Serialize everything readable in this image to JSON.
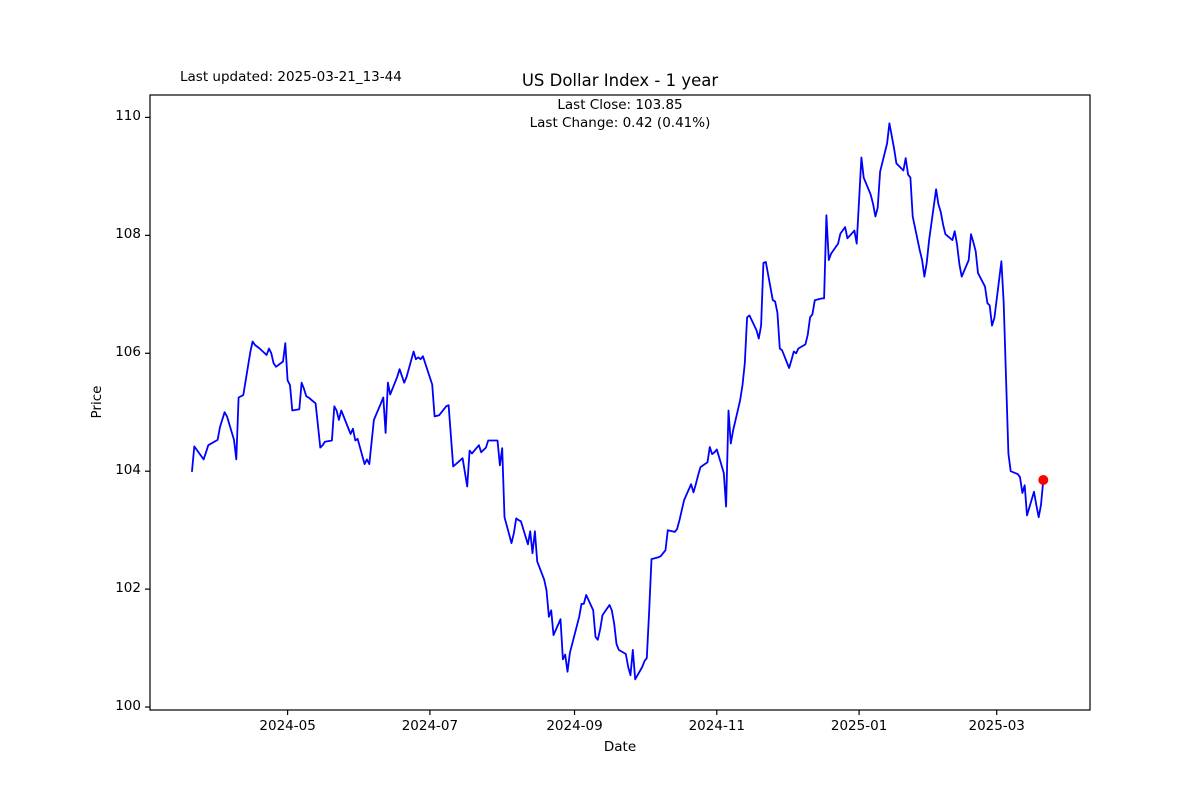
{
  "figure": {
    "last_updated": "Last updated: 2025-03-21_13-44"
  },
  "chart_data": {
    "type": "line",
    "title": "US Dollar Index - 1 year",
    "subtitle_lines": [
      "Last Close: 103.85",
      "Last Change: 0.42 (0.41%)"
    ],
    "xlabel": "Date",
    "ylabel": "Price",
    "grid": false,
    "legend_position": "none",
    "line_color": "#0000ff",
    "marker_color": "#ff0000",
    "axes_color": "#000000",
    "background_color": "#ffffff",
    "last_close": 103.85,
    "last_change": "0.42 (0.41%)",
    "ylim": [
      99.95,
      110.38
    ],
    "xlim_dates": [
      "2024-03-03",
      "2025-04-10"
    ],
    "y_ticks": [
      100,
      102,
      104,
      106,
      108,
      110
    ],
    "x_ticks": [
      {
        "label": "2024-05",
        "date": "2024-05-01"
      },
      {
        "label": "2024-07",
        "date": "2024-07-01"
      },
      {
        "label": "2024-09",
        "date": "2024-09-01"
      },
      {
        "label": "2024-11",
        "date": "2024-11-01"
      },
      {
        "label": "2025-01",
        "date": "2025-01-01"
      },
      {
        "label": "2025-03",
        "date": "2025-03-01"
      }
    ],
    "series": [
      {
        "name": "US Dollar Index",
        "points": [
          [
            "2024-03-21",
            104.0
          ],
          [
            "2024-03-22",
            104.42
          ],
          [
            "2024-03-26",
            104.2
          ],
          [
            "2024-03-27",
            104.32
          ],
          [
            "2024-03-28",
            104.44
          ],
          [
            "2024-04-01",
            104.53
          ],
          [
            "2024-04-02",
            104.75
          ],
          [
            "2024-04-04",
            105.0
          ],
          [
            "2024-04-05",
            104.93
          ],
          [
            "2024-04-08",
            104.53
          ],
          [
            "2024-04-09",
            104.2
          ],
          [
            "2024-04-10",
            105.25
          ],
          [
            "2024-04-12",
            105.29
          ],
          [
            "2024-04-15",
            106.02
          ],
          [
            "2024-04-16",
            106.2
          ],
          [
            "2024-04-17",
            106.14
          ],
          [
            "2024-04-19",
            106.08
          ],
          [
            "2024-04-22",
            105.97
          ],
          [
            "2024-04-23",
            106.08
          ],
          [
            "2024-04-24",
            106.0
          ],
          [
            "2024-04-25",
            105.83
          ],
          [
            "2024-04-26",
            105.77
          ],
          [
            "2024-04-29",
            105.86
          ],
          [
            "2024-04-30",
            106.17
          ],
          [
            "2024-05-01",
            105.54
          ],
          [
            "2024-05-02",
            105.46
          ],
          [
            "2024-05-03",
            105.03
          ],
          [
            "2024-05-06",
            105.05
          ],
          [
            "2024-05-07",
            105.5
          ],
          [
            "2024-05-08",
            105.4
          ],
          [
            "2024-05-09",
            105.27
          ],
          [
            "2024-05-10",
            105.25
          ],
          [
            "2024-05-13",
            105.15
          ],
          [
            "2024-05-15",
            104.4
          ],
          [
            "2024-05-16",
            104.44
          ],
          [
            "2024-05-17",
            104.5
          ],
          [
            "2024-05-20",
            104.52
          ],
          [
            "2024-05-21",
            105.1
          ],
          [
            "2024-05-22",
            105.03
          ],
          [
            "2024-05-23",
            104.87
          ],
          [
            "2024-05-24",
            105.03
          ],
          [
            "2024-05-28",
            104.63
          ],
          [
            "2024-05-29",
            104.72
          ],
          [
            "2024-05-30",
            104.52
          ],
          [
            "2024-05-31",
            104.55
          ],
          [
            "2024-06-03",
            104.12
          ],
          [
            "2024-06-04",
            104.2
          ],
          [
            "2024-06-05",
            104.12
          ],
          [
            "2024-06-07",
            104.87
          ],
          [
            "2024-06-10",
            105.15
          ],
          [
            "2024-06-11",
            105.25
          ],
          [
            "2024-06-12",
            104.65
          ],
          [
            "2024-06-13",
            105.5
          ],
          [
            "2024-06-14",
            105.3
          ],
          [
            "2024-06-17",
            105.6
          ],
          [
            "2024-06-18",
            105.73
          ],
          [
            "2024-06-20",
            105.5
          ],
          [
            "2024-06-21",
            105.6
          ],
          [
            "2024-06-24",
            106.03
          ],
          [
            "2024-06-25",
            105.9
          ],
          [
            "2024-06-26",
            105.93
          ],
          [
            "2024-06-27",
            105.9
          ],
          [
            "2024-06-28",
            105.95
          ],
          [
            "2024-07-02",
            105.47
          ],
          [
            "2024-07-03",
            104.93
          ],
          [
            "2024-07-05",
            104.95
          ],
          [
            "2024-07-08",
            105.1
          ],
          [
            "2024-07-09",
            105.12
          ],
          [
            "2024-07-11",
            104.08
          ],
          [
            "2024-07-15",
            104.22
          ],
          [
            "2024-07-17",
            103.74
          ],
          [
            "2024-07-18",
            104.35
          ],
          [
            "2024-07-19",
            104.3
          ],
          [
            "2024-07-22",
            104.44
          ],
          [
            "2024-07-23",
            104.32
          ],
          [
            "2024-07-25",
            104.4
          ],
          [
            "2024-07-26",
            104.52
          ],
          [
            "2024-07-30",
            104.52
          ],
          [
            "2024-07-31",
            104.1
          ],
          [
            "2024-08-01",
            104.39
          ],
          [
            "2024-08-02",
            103.22
          ],
          [
            "2024-08-05",
            102.78
          ],
          [
            "2024-08-06",
            102.95
          ],
          [
            "2024-08-07",
            103.2
          ],
          [
            "2024-08-08",
            103.17
          ],
          [
            "2024-08-09",
            103.15
          ],
          [
            "2024-08-12",
            102.76
          ],
          [
            "2024-08-13",
            102.98
          ],
          [
            "2024-08-14",
            102.61
          ],
          [
            "2024-08-15",
            102.98
          ],
          [
            "2024-08-16",
            102.47
          ],
          [
            "2024-08-19",
            102.16
          ],
          [
            "2024-08-20",
            101.98
          ],
          [
            "2024-08-21",
            101.53
          ],
          [
            "2024-08-22",
            101.64
          ],
          [
            "2024-08-23",
            101.22
          ],
          [
            "2024-08-26",
            101.49
          ],
          [
            "2024-08-27",
            100.81
          ],
          [
            "2024-08-28",
            100.89
          ],
          [
            "2024-08-29",
            100.6
          ],
          [
            "2024-08-30",
            100.92
          ],
          [
            "2024-09-03",
            101.53
          ],
          [
            "2024-09-04",
            101.75
          ],
          [
            "2024-09-05",
            101.75
          ],
          [
            "2024-09-06",
            101.9
          ],
          [
            "2024-09-09",
            101.64
          ],
          [
            "2024-09-10",
            101.19
          ],
          [
            "2024-09-11",
            101.14
          ],
          [
            "2024-09-12",
            101.32
          ],
          [
            "2024-09-13",
            101.56
          ],
          [
            "2024-09-16",
            101.73
          ],
          [
            "2024-09-17",
            101.64
          ],
          [
            "2024-09-18",
            101.41
          ],
          [
            "2024-09-19",
            101.07
          ],
          [
            "2024-09-20",
            100.97
          ],
          [
            "2024-09-23",
            100.9
          ],
          [
            "2024-09-24",
            100.68
          ],
          [
            "2024-09-25",
            100.54
          ],
          [
            "2024-09-26",
            100.97
          ],
          [
            "2024-09-27",
            100.47
          ],
          [
            "2024-09-30",
            100.68
          ],
          [
            "2024-10-01",
            100.78
          ],
          [
            "2024-10-02",
            100.83
          ],
          [
            "2024-10-03",
            101.64
          ],
          [
            "2024-10-04",
            102.51
          ],
          [
            "2024-10-07",
            102.54
          ],
          [
            "2024-10-08",
            102.56
          ],
          [
            "2024-10-10",
            102.66
          ],
          [
            "2024-10-11",
            103.0
          ],
          [
            "2024-10-14",
            102.97
          ],
          [
            "2024-10-15",
            103.02
          ],
          [
            "2024-10-16",
            103.17
          ],
          [
            "2024-10-17",
            103.34
          ],
          [
            "2024-10-18",
            103.51
          ],
          [
            "2024-10-21",
            103.78
          ],
          [
            "2024-10-22",
            103.64
          ],
          [
            "2024-10-23",
            103.78
          ],
          [
            "2024-10-24",
            103.93
          ],
          [
            "2024-10-25",
            104.07
          ],
          [
            "2024-10-28",
            104.15
          ],
          [
            "2024-10-29",
            104.41
          ],
          [
            "2024-10-30",
            104.29
          ],
          [
            "2024-10-31",
            104.32
          ],
          [
            "2024-11-01",
            104.37
          ],
          [
            "2024-11-04",
            103.97
          ],
          [
            "2024-11-05",
            103.4
          ],
          [
            "2024-11-06",
            105.03
          ],
          [
            "2024-11-07",
            104.47
          ],
          [
            "2024-11-08",
            104.69
          ],
          [
            "2024-11-11",
            105.2
          ],
          [
            "2024-11-12",
            105.46
          ],
          [
            "2024-11-13",
            105.83
          ],
          [
            "2024-11-14",
            106.61
          ],
          [
            "2024-11-15",
            106.64
          ],
          [
            "2024-11-18",
            106.39
          ],
          [
            "2024-11-19",
            106.25
          ],
          [
            "2024-11-20",
            106.47
          ],
          [
            "2024-11-21",
            107.53
          ],
          [
            "2024-11-22",
            107.55
          ],
          [
            "2024-11-25",
            106.9
          ],
          [
            "2024-11-26",
            106.88
          ],
          [
            "2024-11-27",
            106.69
          ],
          [
            "2024-11-28",
            106.08
          ],
          [
            "2024-11-29",
            106.05
          ],
          [
            "2024-12-02",
            105.75
          ],
          [
            "2024-12-03",
            105.88
          ],
          [
            "2024-12-04",
            106.03
          ],
          [
            "2024-12-05",
            106.0
          ],
          [
            "2024-12-06",
            106.08
          ],
          [
            "2024-12-09",
            106.15
          ],
          [
            "2024-12-10",
            106.32
          ],
          [
            "2024-12-11",
            106.61
          ],
          [
            "2024-12-12",
            106.66
          ],
          [
            "2024-12-13",
            106.9
          ],
          [
            "2024-12-16",
            106.93
          ],
          [
            "2024-12-17",
            106.93
          ],
          [
            "2024-12-18",
            108.34
          ],
          [
            "2024-12-19",
            107.58
          ],
          [
            "2024-12-20",
            107.69
          ],
          [
            "2024-12-23",
            107.86
          ],
          [
            "2024-12-24",
            108.03
          ],
          [
            "2024-12-26",
            108.14
          ],
          [
            "2024-12-27",
            107.95
          ],
          [
            "2024-12-30",
            108.08
          ],
          [
            "2024-12-31",
            107.86
          ],
          [
            "2025-01-02",
            109.32
          ],
          [
            "2025-01-03",
            108.98
          ],
          [
            "2025-01-06",
            108.69
          ],
          [
            "2025-01-07",
            108.53
          ],
          [
            "2025-01-08",
            108.32
          ],
          [
            "2025-01-09",
            108.47
          ],
          [
            "2025-01-10",
            109.08
          ],
          [
            "2025-01-13",
            109.56
          ],
          [
            "2025-01-14",
            109.9
          ],
          [
            "2025-01-15",
            109.69
          ],
          [
            "2025-01-16",
            109.47
          ],
          [
            "2025-01-17",
            109.22
          ],
          [
            "2025-01-20",
            109.1
          ],
          [
            "2025-01-21",
            109.31
          ],
          [
            "2025-01-22",
            109.03
          ],
          [
            "2025-01-23",
            108.98
          ],
          [
            "2025-01-24",
            108.32
          ],
          [
            "2025-01-27",
            107.75
          ],
          [
            "2025-01-28",
            107.58
          ],
          [
            "2025-01-29",
            107.3
          ],
          [
            "2025-01-30",
            107.53
          ],
          [
            "2025-01-31",
            107.92
          ],
          [
            "2025-02-03",
            108.78
          ],
          [
            "2025-02-04",
            108.53
          ],
          [
            "2025-02-05",
            108.4
          ],
          [
            "2025-02-06",
            108.18
          ],
          [
            "2025-02-07",
            108.02
          ],
          [
            "2025-02-10",
            107.92
          ],
          [
            "2025-02-11",
            108.07
          ],
          [
            "2025-02-12",
            107.85
          ],
          [
            "2025-02-13",
            107.51
          ],
          [
            "2025-02-14",
            107.3
          ],
          [
            "2025-02-17",
            107.58
          ],
          [
            "2025-02-18",
            108.02
          ],
          [
            "2025-02-19",
            107.88
          ],
          [
            "2025-02-20",
            107.73
          ],
          [
            "2025-02-21",
            107.36
          ],
          [
            "2025-02-24",
            107.13
          ],
          [
            "2025-02-25",
            106.85
          ],
          [
            "2025-02-26",
            106.81
          ],
          [
            "2025-02-27",
            106.47
          ],
          [
            "2025-02-28",
            106.6
          ],
          [
            "2025-03-03",
            107.56
          ],
          [
            "2025-03-04",
            106.85
          ],
          [
            "2025-03-05",
            105.6
          ],
          [
            "2025-03-06",
            104.3
          ],
          [
            "2025-03-07",
            104.0
          ],
          [
            "2025-03-10",
            103.95
          ],
          [
            "2025-03-11",
            103.9
          ],
          [
            "2025-03-12",
            103.63
          ],
          [
            "2025-03-13",
            103.76
          ],
          [
            "2025-03-14",
            103.25
          ],
          [
            "2025-03-17",
            103.65
          ],
          [
            "2025-03-18",
            103.42
          ],
          [
            "2025-03-19",
            103.22
          ],
          [
            "2025-03-20",
            103.43
          ],
          [
            "2025-03-21",
            103.85
          ]
        ]
      }
    ]
  }
}
